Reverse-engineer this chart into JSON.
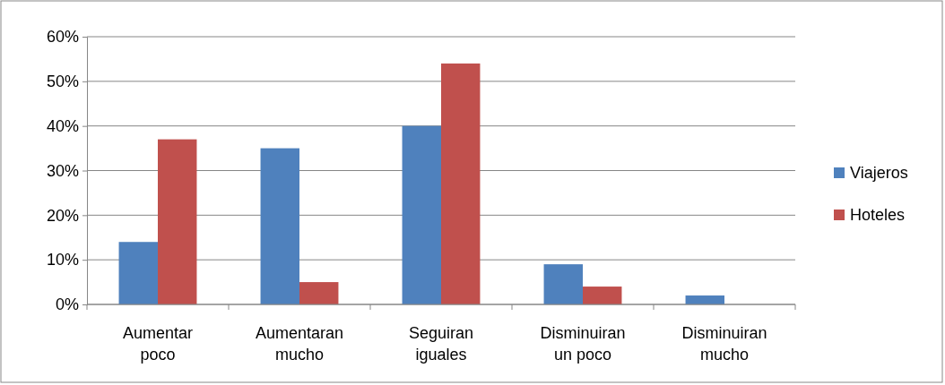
{
  "chart_data": {
    "type": "bar",
    "categories": [
      "Aumentar poco",
      "Aumentaran mucho",
      "Seguiran iguales",
      "Disminuiran un poco",
      "Disminuiran mucho"
    ],
    "series": [
      {
        "name": "Viajeros",
        "color": "#4f81bd",
        "values": [
          14,
          35,
          40,
          9,
          2
        ]
      },
      {
        "name": "Hoteles",
        "color": "#c0504d",
        "values": [
          37,
          5,
          54,
          4,
          0
        ]
      }
    ],
    "ylim": [
      0,
      60
    ],
    "yticks": [
      {
        "value": 0,
        "label": "0%"
      },
      {
        "value": 10,
        "label": "10%"
      },
      {
        "value": 20,
        "label": "20%"
      },
      {
        "value": 30,
        "label": "30%"
      },
      {
        "value": 40,
        "label": "40%"
      },
      {
        "value": 50,
        "label": "50%"
      },
      {
        "value": 60,
        "label": "60%"
      }
    ],
    "grid": "y",
    "legend": "right"
  }
}
